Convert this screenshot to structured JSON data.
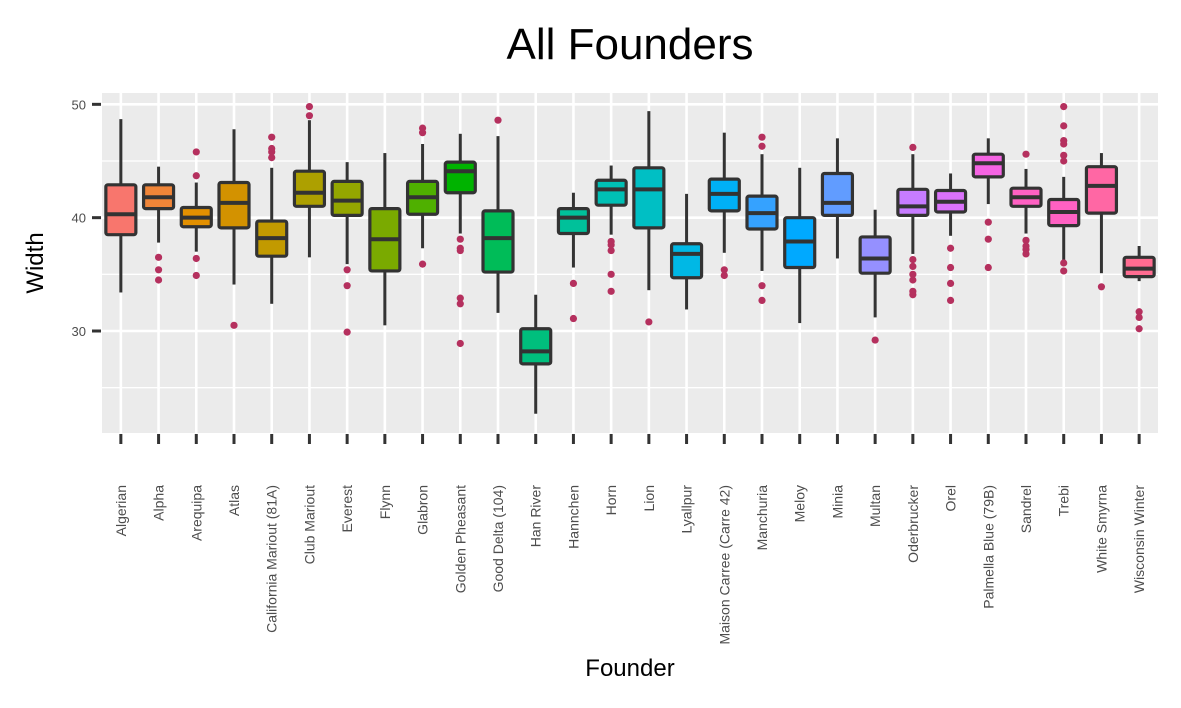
{
  "chart_data": {
    "type": "box",
    "title": "All Founders",
    "xlabel": "Founder",
    "ylabel": "Width",
    "ylim": [
      21,
      51
    ],
    "yticks": [
      30,
      40,
      50
    ],
    "grid": true,
    "legend": "none",
    "outlier_color": "#b5305e",
    "box_stroke": "#333333",
    "panel_background": "#ebebeb",
    "categories": [
      {
        "name": "Algerian",
        "color": "#F8766D",
        "whisker_low": 33.4,
        "q1": 38.5,
        "median": 40.3,
        "q3": 42.9,
        "whisker_high": 48.7,
        "outliers": []
      },
      {
        "name": "Alpha",
        "color": "#F08538",
        "whisker_low": 37.8,
        "q1": 40.8,
        "median": 41.8,
        "q3": 42.9,
        "whisker_high": 44.5,
        "outliers": [
          36.5,
          35.4,
          34.5
        ]
      },
      {
        "name": "Arequipa",
        "color": "#E39000",
        "whisker_low": 37.0,
        "q1": 39.2,
        "median": 40.0,
        "q3": 40.9,
        "whisker_high": 43.1,
        "outliers": [
          45.8,
          43.7,
          36.4,
          34.9
        ]
      },
      {
        "name": "Atlas",
        "color": "#D39200",
        "whisker_low": 34.1,
        "q1": 39.1,
        "median": 41.3,
        "q3": 43.1,
        "whisker_high": 47.8,
        "outliers": [
          30.5
        ]
      },
      {
        "name": "California Mariout (81A)",
        "color": "#C29A00",
        "whisker_low": 32.4,
        "q1": 36.6,
        "median": 38.2,
        "q3": 39.7,
        "whisker_high": 44.4,
        "outliers": [
          47.1,
          46.1,
          45.8,
          45.3
        ]
      },
      {
        "name": "Club Mariout",
        "color": "#ADA000",
        "whisker_low": 36.5,
        "q1": 41.0,
        "median": 42.2,
        "q3": 44.1,
        "whisker_high": 48.6,
        "outliers": [
          49.8,
          49.0
        ]
      },
      {
        "name": "Everest",
        "color": "#94A600",
        "whisker_low": 35.9,
        "q1": 40.2,
        "median": 41.5,
        "q3": 43.2,
        "whisker_high": 44.9,
        "outliers": [
          35.4,
          34.0,
          29.9
        ]
      },
      {
        "name": "Flynn",
        "color": "#7AAA00",
        "whisker_low": 30.5,
        "q1": 35.3,
        "median": 38.1,
        "q3": 40.8,
        "whisker_high": 45.7,
        "outliers": []
      },
      {
        "name": "Glabron",
        "color": "#4FB000",
        "whisker_low": 37.3,
        "q1": 40.3,
        "median": 41.8,
        "q3": 43.2,
        "whisker_high": 46.5,
        "outliers": [
          47.9,
          47.5,
          35.9
        ]
      },
      {
        "name": "Golden Pheasant",
        "color": "#00B300",
        "whisker_low": 38.6,
        "q1": 42.2,
        "median": 44.1,
        "q3": 44.9,
        "whisker_high": 47.4,
        "outliers": [
          38.1,
          37.3,
          37.1,
          32.9,
          32.4,
          28.9
        ]
      },
      {
        "name": "Good Delta (104)",
        "color": "#00BC58",
        "whisker_low": 31.6,
        "q1": 35.2,
        "median": 38.2,
        "q3": 40.6,
        "whisker_high": 47.2,
        "outliers": [
          48.6
        ]
      },
      {
        "name": "Han River",
        "color": "#00BF7D",
        "whisker_low": 22.7,
        "q1": 27.1,
        "median": 28.2,
        "q3": 30.2,
        "whisker_high": 33.2,
        "outliers": []
      },
      {
        "name": "Hannchen",
        "color": "#00C19A",
        "whisker_low": 35.6,
        "q1": 38.6,
        "median": 40.0,
        "q3": 40.8,
        "whisker_high": 42.2,
        "outliers": [
          34.2,
          31.1
        ]
      },
      {
        "name": "Horn",
        "color": "#00C0B5",
        "whisker_low": 38.5,
        "q1": 41.1,
        "median": 42.5,
        "q3": 43.3,
        "whisker_high": 44.6,
        "outliers": [
          37.9,
          37.6,
          37.1,
          35.0,
          33.5
        ]
      },
      {
        "name": "Lion",
        "color": "#00BFC4",
        "whisker_low": 33.6,
        "q1": 39.1,
        "median": 42.5,
        "q3": 44.4,
        "whisker_high": 49.4,
        "outliers": [
          30.8
        ]
      },
      {
        "name": "Lyallpur",
        "color": "#00B8E5",
        "whisker_low": 31.9,
        "q1": 34.7,
        "median": 36.8,
        "q3": 37.7,
        "whisker_high": 42.1,
        "outliers": []
      },
      {
        "name": "Maison Carree (Carre 42)",
        "color": "#00B0F6",
        "whisker_low": 36.9,
        "q1": 40.6,
        "median": 42.1,
        "q3": 43.4,
        "whisker_high": 47.5,
        "outliers": [
          35.4,
          34.9
        ]
      },
      {
        "name": "Manchuria",
        "color": "#35A2FF",
        "whisker_low": 35.3,
        "q1": 39.0,
        "median": 40.4,
        "q3": 41.9,
        "whisker_high": 45.6,
        "outliers": [
          47.1,
          46.3,
          34.0,
          32.7
        ]
      },
      {
        "name": "Meloy",
        "color": "#00A9FF",
        "whisker_low": 30.7,
        "q1": 35.6,
        "median": 37.9,
        "q3": 40.0,
        "whisker_high": 44.4,
        "outliers": []
      },
      {
        "name": "Minia",
        "color": "#619CFF",
        "whisker_low": 36.4,
        "q1": 40.2,
        "median": 41.3,
        "q3": 43.9,
        "whisker_high": 47.0,
        "outliers": []
      },
      {
        "name": "Multan",
        "color": "#9590FF",
        "whisker_low": 31.2,
        "q1": 35.1,
        "median": 36.4,
        "q3": 38.3,
        "whisker_high": 40.7,
        "outliers": [
          29.2
        ]
      },
      {
        "name": "Oderbrucker",
        "color": "#C77CFF",
        "whisker_low": 36.8,
        "q1": 40.2,
        "median": 41.0,
        "q3": 42.5,
        "whisker_high": 45.6,
        "outliers": [
          46.2,
          36.3,
          35.7,
          35.0,
          34.5,
          33.5,
          33.2
        ]
      },
      {
        "name": "Orel",
        "color": "#DB72FB",
        "whisker_low": 38.4,
        "q1": 40.5,
        "median": 41.4,
        "q3": 42.4,
        "whisker_high": 43.9,
        "outliers": [
          37.3,
          35.6,
          34.2,
          32.7
        ]
      },
      {
        "name": "Palmella Blue (79B)",
        "color": "#F564E3",
        "whisker_low": 41.2,
        "q1": 43.6,
        "median": 44.8,
        "q3": 45.6,
        "whisker_high": 47.0,
        "outliers": [
          39.6,
          38.1,
          35.6
        ]
      },
      {
        "name": "Sandrel",
        "color": "#FF61C3",
        "whisker_low": 38.6,
        "q1": 41.0,
        "median": 41.8,
        "q3": 42.6,
        "whisker_high": 44.3,
        "outliers": [
          45.6,
          38.0,
          37.5,
          37.2,
          36.8
        ]
      },
      {
        "name": "Trebi",
        "color": "#FF61C3",
        "whisker_low": 36.2,
        "q1": 39.3,
        "median": 40.5,
        "q3": 41.6,
        "whisker_high": 43.6,
        "outliers": [
          49.8,
          48.1,
          46.8,
          46.5,
          45.5,
          45.0,
          36.0,
          35.3
        ]
      },
      {
        "name": "White Smyrna",
        "color": "#FF67A4",
        "whisker_low": 35.1,
        "q1": 40.4,
        "median": 42.8,
        "q3": 44.5,
        "whisker_high": 45.7,
        "outliers": [
          33.9
        ]
      },
      {
        "name": "Wisconsin Winter",
        "color": "#FF6C91",
        "whisker_low": 34.4,
        "q1": 34.8,
        "median": 35.5,
        "q3": 36.5,
        "whisker_high": 37.5,
        "outliers": [
          31.7,
          31.2,
          30.2
        ]
      }
    ]
  }
}
